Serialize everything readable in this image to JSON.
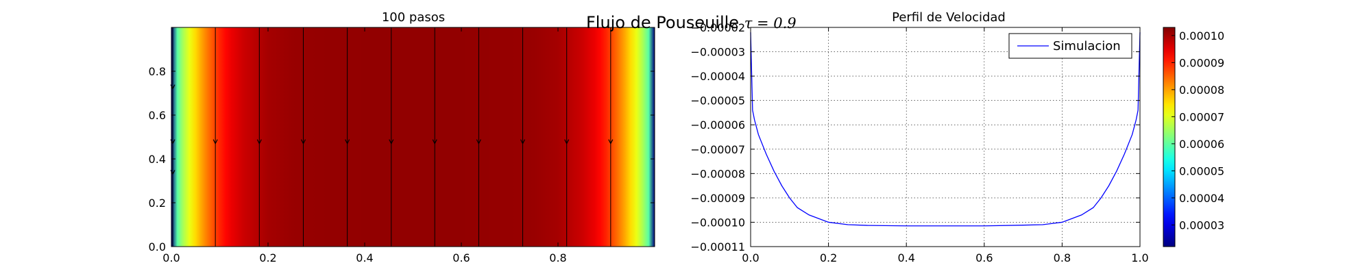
{
  "figure": {
    "suptitle_text": "Flujo de Pouseuille ",
    "suptitle_math": "τ = 0.9"
  },
  "chart_data": [
    {
      "type": "heatmap",
      "title": "100 pasos",
      "xlim": [
        0.0,
        1.0
      ],
      "ylim": [
        0.0,
        1.0
      ],
      "xticks": [
        0.0,
        0.2,
        0.4,
        0.6,
        0.8
      ],
      "xtick_labels": [
        "0.0",
        "0.2",
        "0.4",
        "0.6",
        "0.8"
      ],
      "yticks": [
        0.0,
        0.2,
        0.4,
        0.6,
        0.8
      ],
      "ytick_labels": [
        "0.0",
        "0.2",
        "0.4",
        "0.6",
        "0.8"
      ],
      "colormap": "jet",
      "vmin": 2.2e-05,
      "vmax": 0.000103,
      "streamline_x": [
        0.0,
        0.091,
        0.182,
        0.273,
        0.364,
        0.455,
        0.545,
        0.636,
        0.727,
        0.818,
        0.909
      ],
      "streamline_direction": "down",
      "colorbar": {
        "ticks": [
          3e-05,
          4e-05,
          5e-05,
          6e-05,
          7e-05,
          8e-05,
          9e-05,
          0.0001
        ],
        "tick_labels": [
          "0.00003",
          "0.00004",
          "0.00005",
          "0.00006",
          "0.00007",
          "0.00008",
          "0.00009",
          "0.00010"
        ]
      }
    },
    {
      "type": "line",
      "title": "Perfil de Velocidad",
      "xlim": [
        0.0,
        1.0
      ],
      "ylim": [
        -0.00011,
        -2e-05
      ],
      "grid": true,
      "xticks": [
        0.0,
        0.2,
        0.4,
        0.6,
        0.8,
        1.0
      ],
      "xtick_labels": [
        "0.0",
        "0.2",
        "0.4",
        "0.6",
        "0.8",
        "1.0"
      ],
      "yticks": [
        -2e-05,
        -3e-05,
        -4e-05,
        -5e-05,
        -6e-05,
        -7e-05,
        -8e-05,
        -9e-05,
        -0.0001,
        -0.00011
      ],
      "ytick_labels": [
        "−0.00002",
        "−0.00003",
        "−0.00004",
        "−0.00005",
        "−0.00006",
        "−0.00007",
        "−0.00008",
        "−0.00009",
        "−0.00010",
        "−0.00011"
      ],
      "legend_location": "top-right",
      "series": [
        {
          "name": "Simulacion",
          "color": "#0000ff",
          "x": [
            0.0,
            0.005,
            0.01,
            0.02,
            0.04,
            0.06,
            0.08,
            0.1,
            0.12,
            0.15,
            0.2,
            0.25,
            0.3,
            0.4,
            0.5,
            0.6,
            0.7,
            0.75,
            0.8,
            0.85,
            0.88,
            0.9,
            0.92,
            0.94,
            0.96,
            0.98,
            0.99,
            0.995,
            1.0
          ],
          "y": [
            -2.2e-05,
            -5.4e-05,
            -5.8e-05,
            -6.4e-05,
            -7.2e-05,
            -7.9e-05,
            -8.5e-05,
            -9e-05,
            -9.4e-05,
            -9.7e-05,
            -0.0001,
            -0.000101,
            -0.0001013,
            -0.0001015,
            -0.0001015,
            -0.0001015,
            -0.0001012,
            -0.000101,
            -0.0001,
            -9.7e-05,
            -9.4e-05,
            -9e-05,
            -8.5e-05,
            -7.9e-05,
            -7.2e-05,
            -6.4e-05,
            -5.8e-05,
            -5.4e-05,
            -2.2e-05
          ]
        }
      ]
    }
  ]
}
